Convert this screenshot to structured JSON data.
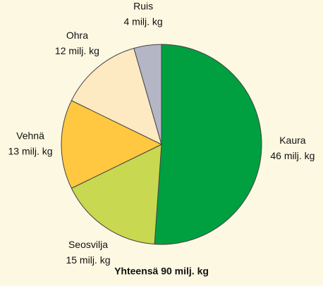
{
  "chart_data": {
    "type": "pie",
    "title": "Yhteensä 90 milj. kg",
    "categories": [
      "Kaura",
      "Seosvilja",
      "Vehnä",
      "Ohra",
      "Ruis"
    ],
    "values": [
      46,
      15,
      13,
      12,
      4
    ],
    "value_labels": [
      "46 milj. kg",
      "15 milj. kg",
      "13 milj. kg",
      "12 milj. kg",
      "4 milj. kg"
    ],
    "colors": [
      "#00a040",
      "#c8d850",
      "#ffc840",
      "#fde9c2",
      "#b4b6c6"
    ]
  }
}
